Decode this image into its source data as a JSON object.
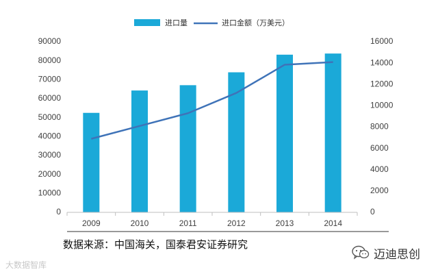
{
  "chart_data": {
    "type": "bar",
    "title": "",
    "categories": [
      "2009",
      "2010",
      "2011",
      "2012",
      "2013",
      "2014"
    ],
    "series": [
      {
        "name": "进口量",
        "type": "bar",
        "axis": "left",
        "color": "#1ba9d8",
        "values": [
          52500,
          64300,
          67100,
          73900,
          83200,
          83800
        ]
      },
      {
        "name": "进口金额（万美元）",
        "type": "line",
        "axis": "right",
        "color": "#3f73b8",
        "values": [
          6900,
          8100,
          9300,
          11200,
          13850,
          14100
        ]
      }
    ],
    "y_left": {
      "range": [
        0,
        90000
      ],
      "ticks": [
        "0",
        "10000",
        "20000",
        "30000",
        "40000",
        "50000",
        "60000",
        "70000",
        "80000",
        "90000"
      ]
    },
    "y_right": {
      "range": [
        0,
        16000
      ],
      "ticks": [
        "0",
        "2000",
        "4000",
        "6000",
        "8000",
        "10000",
        "12000",
        "14000",
        "16000"
      ]
    },
    "grid": false,
    "legend_position": "top-center"
  },
  "source_note": "数据来源：中国海关，国泰君安证券研究",
  "brand": {
    "name": "迈迪思创",
    "icon": "wechat-icon"
  },
  "watermark": "大数据智库"
}
